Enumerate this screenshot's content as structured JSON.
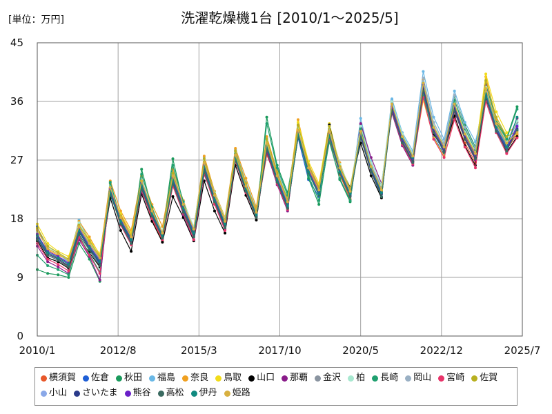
{
  "unit_label": "[単位：万円]",
  "chart_data": {
    "type": "line",
    "title": "洗濯乾燥機1台 [2010/1～2025/5]",
    "xlabel": "",
    "ylabel": "",
    "ylim": [
      0,
      45
    ],
    "y_ticks": [
      0,
      9,
      18,
      27,
      36,
      45
    ],
    "x_ticks": [
      "2010/1",
      "2012/8",
      "2015/3",
      "2017/10",
      "2020/5",
      "2022/12",
      "2025/7"
    ],
    "x_range": [
      "2010/1",
      "2025/7"
    ],
    "grid": true,
    "legend_position": "bottom",
    "x": [
      "2010/1",
      "2010/5",
      "2010/9",
      "2011/1",
      "2011/5",
      "2011/9",
      "2012/1",
      "2012/5",
      "2012/9",
      "2013/1",
      "2013/5",
      "2013/9",
      "2014/1",
      "2014/5",
      "2014/9",
      "2015/1",
      "2015/5",
      "2015/9",
      "2016/1",
      "2016/5",
      "2016/9",
      "2017/1",
      "2017/5",
      "2017/9",
      "2018/1",
      "2018/5",
      "2018/9",
      "2019/1",
      "2019/5",
      "2019/9",
      "2020/1",
      "2020/5",
      "2020/9",
      "2021/1",
      "2021/5",
      "2021/9",
      "2022/1",
      "2022/5",
      "2022/9",
      "2023/1",
      "2023/5",
      "2023/9",
      "2024/1",
      "2024/5",
      "2024/9",
      "2025/1",
      "2025/5"
    ],
    "series": [
      {
        "name": "横須賀",
        "color": "#e8582a",
        "values": [
          15.8,
          12.6,
          11.9,
          10.6,
          15.6,
          13.2,
          11.5,
          22.1,
          18.6,
          15.4,
          22.8,
          17.8,
          14.6,
          23.2,
          19.4,
          15.2,
          25.4,
          20.4,
          16.6,
          27.2,
          22.6,
          18.6,
          27.8,
          23.8,
          19.4,
          32.2,
          25.2,
          22.2,
          30.6,
          24.8,
          21.0,
          31.2,
          25.6,
          22.6,
          35.2,
          29.6,
          26.6,
          38.8,
          31.2,
          28.2,
          33.6,
          29.6,
          26.6,
          37.2,
          31.6,
          28.6,
          31.0
        ]
      },
      {
        "name": "佐倉",
        "color": "#1f5fd6",
        "values": [
          16.8,
          13.0,
          12.2,
          11.0,
          16.4,
          13.6,
          11.0,
          21.6,
          17.6,
          14.8,
          23.6,
          18.8,
          15.2,
          24.0,
          19.6,
          15.6,
          26.2,
          20.8,
          17.2,
          27.6,
          23.2,
          19.2,
          29.2,
          24.6,
          20.4,
          30.4,
          24.0,
          21.4,
          31.8,
          25.6,
          21.8,
          30.8,
          25.2,
          21.4,
          36.2,
          30.2,
          27.2,
          37.4,
          30.6,
          27.8,
          35.2,
          30.8,
          27.4,
          36.6,
          32.0,
          29.2,
          31.6
        ]
      },
      {
        "name": "秋田",
        "color": "#1a9a5c",
        "values": [
          10.2,
          9.6,
          9.4,
          9.0,
          14.2,
          11.8,
          8.4,
          23.4,
          17.8,
          14.2,
          25.6,
          19.6,
          15.8,
          27.2,
          20.2,
          15.2,
          26.8,
          21.6,
          17.6,
          28.4,
          23.2,
          18.2,
          33.6,
          26.2,
          22.0,
          31.8,
          24.2,
          20.2,
          30.2,
          24.0,
          20.6,
          32.4,
          26.4,
          21.8,
          35.8,
          30.6,
          27.6,
          37.6,
          31.8,
          29.2,
          36.8,
          32.4,
          29.0,
          38.6,
          33.2,
          30.4,
          35.2
        ]
      },
      {
        "name": "福島",
        "color": "#6ab8e6",
        "values": [
          16.2,
          13.4,
          12.6,
          11.4,
          17.8,
          14.6,
          12.2,
          22.8,
          18.2,
          15.6,
          24.2,
          19.2,
          15.8,
          25.2,
          20.4,
          16.2,
          27.4,
          21.6,
          17.8,
          28.6,
          23.6,
          19.4,
          30.4,
          25.4,
          21.2,
          31.6,
          25.8,
          22.6,
          31.2,
          25.2,
          21.6,
          33.4,
          26.8,
          23.0,
          36.4,
          31.2,
          28.4,
          40.6,
          33.6,
          30.2,
          37.6,
          32.8,
          29.8,
          36.8,
          31.6,
          28.8,
          32.4
        ]
      },
      {
        "name": "奈良",
        "color": "#f0a020",
        "values": [
          16.4,
          13.2,
          12.4,
          11.8,
          17.6,
          15.2,
          12.4,
          23.8,
          19.2,
          16.2,
          24.6,
          20.2,
          16.8,
          25.6,
          20.8,
          16.6,
          27.6,
          22.2,
          18.2,
          28.8,
          24.2,
          19.8,
          30.6,
          25.2,
          21.0,
          33.2,
          26.4,
          23.0,
          31.8,
          26.6,
          22.4,
          30.6,
          25.6,
          22.2,
          35.6,
          30.4,
          27.2,
          39.4,
          32.2,
          29.0,
          34.6,
          30.6,
          27.8,
          39.8,
          33.2,
          30.0,
          30.8
        ]
      },
      {
        "name": "鳥取",
        "color": "#f2dc1a",
        "values": [
          17.2,
          14.2,
          13.0,
          12.2,
          17.2,
          14.8,
          12.6,
          22.4,
          18.8,
          15.8,
          23.4,
          19.4,
          15.6,
          24.6,
          20.0,
          16.4,
          26.6,
          21.2,
          17.4,
          27.4,
          22.8,
          19.0,
          29.8,
          24.8,
          20.8,
          32.8,
          26.8,
          23.4,
          32.6,
          26.2,
          22.8,
          31.6,
          26.0,
          22.4,
          34.8,
          29.6,
          26.8,
          36.2,
          30.4,
          27.6,
          35.6,
          31.2,
          28.2,
          40.2,
          34.4,
          31.2,
          32.2
        ]
      },
      {
        "name": "山口",
        "color": "#000000",
        "values": [
          14.6,
          12.0,
          11.4,
          10.4,
          15.0,
          12.8,
          10.6,
          21.2,
          16.2,
          13.0,
          21.8,
          17.6,
          14.4,
          21.4,
          18.2,
          14.6,
          23.8,
          19.2,
          15.8,
          26.2,
          21.6,
          17.8,
          28.8,
          23.6,
          19.6,
          30.6,
          25.4,
          22.2,
          32.4,
          26.0,
          22.8,
          29.6,
          24.6,
          21.2,
          35.4,
          30.0,
          26.8,
          38.2,
          31.0,
          28.4,
          33.8,
          29.2,
          26.2,
          36.4,
          31.8,
          28.2,
          30.6
        ]
      },
      {
        "name": "那覇",
        "color": "#8a1c8a",
        "values": [
          13.8,
          11.4,
          10.6,
          9.6,
          14.8,
          12.2,
          8.6,
          22.6,
          17.4,
          14.4,
          22.2,
          18.2,
          15.0,
          23.6,
          18.6,
          14.8,
          24.8,
          20.6,
          16.4,
          27.8,
          22.4,
          18.4,
          28.2,
          23.2,
          19.2,
          31.2,
          25.8,
          22.6,
          30.8,
          25.4,
          22.0,
          32.6,
          27.4,
          23.4,
          34.2,
          29.2,
          26.2,
          37.8,
          31.4,
          28.6,
          34.4,
          30.2,
          27.0,
          38.4,
          32.6,
          29.6,
          33.4
        ]
      },
      {
        "name": "金沢",
        "color": "#8a94a0",
        "values": [
          15.4,
          12.8,
          12.0,
          11.2,
          16.6,
          14.0,
          11.8,
          21.8,
          17.2,
          14.6,
          23.0,
          18.6,
          15.4,
          24.4,
          19.8,
          16.0,
          26.0,
          21.0,
          17.0,
          27.0,
          22.2,
          18.8,
          29.4,
          24.4,
          20.6,
          31.4,
          25.6,
          22.4,
          31.4,
          25.8,
          22.2,
          31.8,
          26.2,
          22.8,
          35.8,
          30.8,
          27.8,
          38.0,
          31.6,
          28.6,
          35.0,
          30.4,
          27.6,
          37.8,
          32.4,
          29.4,
          32.8
        ]
      },
      {
        "name": "柏",
        "color": "#a8e8d0",
        "values": [
          16.0,
          13.6,
          12.8,
          11.6,
          17.4,
          14.4,
          12.0,
          23.0,
          18.4,
          15.2,
          24.0,
          19.6,
          16.0,
          25.0,
          20.6,
          16.8,
          27.0,
          22.0,
          18.0,
          28.2,
          23.4,
          19.2,
          30.0,
          25.0,
          21.4,
          32.0,
          26.2,
          22.8,
          32.0,
          26.4,
          22.6,
          32.2,
          26.6,
          23.2,
          36.0,
          31.0,
          28.0,
          39.0,
          32.4,
          29.4,
          36.2,
          31.4,
          28.4,
          38.2,
          32.8,
          29.8,
          33.0
        ]
      },
      {
        "name": "長崎",
        "color": "#20a070",
        "values": [
          12.4,
          10.8,
          10.2,
          9.4,
          15.4,
          12.6,
          9.8,
          23.6,
          18.0,
          14.8,
          24.8,
          19.8,
          15.6,
          26.2,
          20.6,
          15.8,
          25.8,
          20.8,
          16.8,
          28.0,
          22.8,
          18.6,
          32.6,
          25.8,
          21.6,
          31.0,
          24.6,
          20.8,
          29.8,
          24.2,
          20.8,
          31.8,
          25.8,
          21.4,
          35.0,
          30.2,
          27.4,
          36.8,
          31.2,
          28.8,
          36.2,
          31.8,
          28.6,
          37.6,
          32.8,
          30.2,
          34.8
        ]
      },
      {
        "name": "岡山",
        "color": "#9ab0c4",
        "values": [
          15.6,
          13.0,
          12.2,
          11.4,
          16.8,
          14.2,
          11.6,
          22.2,
          17.8,
          15.0,
          23.2,
          18.8,
          15.4,
          24.8,
          20.2,
          16.4,
          26.4,
          21.4,
          17.6,
          27.6,
          22.6,
          18.8,
          29.6,
          24.6,
          20.8,
          31.0,
          25.0,
          21.8,
          31.6,
          25.8,
          22.0,
          31.4,
          25.8,
          22.4,
          35.4,
          30.4,
          27.6,
          39.6,
          32.8,
          29.6,
          37.0,
          32.0,
          28.8,
          37.4,
          32.2,
          29.0,
          32.0
        ]
      },
      {
        "name": "宮崎",
        "color": "#e8346a",
        "values": [
          14.2,
          11.8,
          11.0,
          10.0,
          15.2,
          12.4,
          9.6,
          22.0,
          17.0,
          14.0,
          22.4,
          18.0,
          14.8,
          23.0,
          18.8,
          14.8,
          25.0,
          20.2,
          16.2,
          26.8,
          22.0,
          18.2,
          28.6,
          23.4,
          19.4,
          31.0,
          25.6,
          22.0,
          30.4,
          25.0,
          21.4,
          31.4,
          25.4,
          21.8,
          34.6,
          29.4,
          26.4,
          36.6,
          30.2,
          27.4,
          33.2,
          29.0,
          25.8,
          36.0,
          31.2,
          28.0,
          30.4
        ]
      },
      {
        "name": "佐賀",
        "color": "#b8b020",
        "values": [
          16.6,
          13.8,
          12.8,
          11.8,
          17.0,
          14.6,
          12.2,
          22.6,
          18.4,
          15.4,
          23.8,
          19.4,
          15.8,
          25.0,
          20.2,
          16.2,
          27.2,
          21.8,
          17.8,
          28.4,
          23.4,
          19.2,
          30.2,
          25.0,
          21.0,
          32.4,
          26.2,
          22.8,
          32.2,
          26.0,
          22.6,
          31.2,
          25.8,
          22.2,
          35.0,
          30.0,
          27.0,
          38.4,
          31.8,
          28.8,
          34.8,
          30.8,
          27.6,
          39.2,
          33.6,
          30.6,
          31.4
        ]
      },
      {
        "name": "小山",
        "color": "#8aa8e8",
        "values": [
          15.2,
          12.8,
          12.0,
          11.0,
          16.2,
          13.8,
          11.4,
          22.4,
          17.8,
          14.8,
          23.4,
          19.0,
          15.6,
          24.2,
          19.8,
          16.0,
          26.2,
          21.2,
          17.4,
          27.4,
          22.8,
          18.8,
          29.0,
          24.2,
          20.2,
          31.2,
          25.4,
          22.0,
          31.0,
          25.4,
          21.8,
          31.0,
          25.6,
          22.0,
          35.2,
          30.2,
          27.2,
          38.6,
          31.8,
          28.8,
          35.4,
          30.8,
          27.8,
          37.0,
          31.8,
          28.8,
          32.2
        ]
      },
      {
        "name": "さいたま",
        "color": "#2a3a8a",
        "values": [
          15.0,
          12.6,
          11.8,
          10.8,
          16.0,
          13.4,
          11.2,
          22.2,
          17.4,
          14.6,
          23.0,
          18.6,
          15.4,
          23.8,
          19.4,
          15.6,
          25.8,
          20.8,
          17.0,
          27.2,
          22.4,
          18.4,
          28.8,
          23.8,
          19.8,
          30.8,
          25.2,
          21.8,
          30.8,
          25.2,
          21.6,
          30.8,
          25.4,
          21.8,
          34.8,
          29.8,
          26.8,
          38.0,
          31.4,
          28.4,
          35.0,
          30.4,
          27.4,
          36.8,
          31.6,
          28.6,
          31.8
        ]
      },
      {
        "name": "熊谷",
        "color": "#6a20c8",
        "values": [
          15.6,
          13.0,
          12.2,
          11.2,
          16.4,
          13.8,
          11.6,
          22.6,
          17.8,
          15.0,
          23.4,
          19.0,
          15.6,
          24.2,
          19.8,
          16.0,
          26.2,
          21.2,
          17.4,
          27.4,
          22.8,
          18.8,
          29.0,
          24.2,
          20.2,
          31.2,
          25.4,
          22.0,
          31.0,
          25.4,
          21.8,
          31.0,
          25.6,
          22.0,
          35.2,
          30.2,
          27.2,
          38.6,
          31.8,
          28.8,
          35.4,
          30.8,
          27.8,
          37.0,
          31.8,
          28.8,
          32.2
        ]
      },
      {
        "name": "高松",
        "color": "#3a6a60",
        "values": [
          14.8,
          12.4,
          11.6,
          10.6,
          15.6,
          13.2,
          10.8,
          21.8,
          17.2,
          14.2,
          22.6,
          18.4,
          15.0,
          23.4,
          19.0,
          15.2,
          25.2,
          20.6,
          16.6,
          27.0,
          22.2,
          18.2,
          28.6,
          23.6,
          19.6,
          30.6,
          25.0,
          21.6,
          30.6,
          25.0,
          21.4,
          30.4,
          25.2,
          21.4,
          34.6,
          29.6,
          26.6,
          37.6,
          31.2,
          28.2,
          34.6,
          30.2,
          27.2,
          36.6,
          31.4,
          28.4,
          31.6
        ]
      },
      {
        "name": "伊丹",
        "color": "#108a80",
        "values": [
          15.4,
          12.8,
          12.0,
          11.0,
          16.2,
          13.6,
          11.4,
          22.2,
          17.6,
          14.8,
          23.2,
          18.8,
          15.4,
          24.0,
          19.6,
          15.8,
          26.0,
          21.0,
          17.2,
          27.4,
          22.6,
          18.6,
          29.2,
          24.0,
          20.0,
          31.0,
          25.2,
          21.8,
          30.8,
          25.2,
          21.8,
          31.2,
          25.8,
          22.0,
          35.6,
          30.4,
          27.4,
          38.8,
          32.0,
          29.0,
          35.6,
          31.0,
          28.0,
          37.2,
          32.0,
          29.0,
          33.6
        ]
      },
      {
        "name": "姫路",
        "color": "#d8b040",
        "values": [
          16.2,
          13.4,
          12.6,
          11.6,
          16.8,
          14.2,
          12.0,
          22.8,
          18.2,
          15.2,
          23.8,
          19.2,
          15.8,
          24.6,
          20.2,
          16.4,
          26.6,
          21.6,
          17.6,
          27.8,
          23.0,
          19.0,
          29.6,
          24.6,
          20.6,
          31.6,
          25.8,
          22.4,
          31.4,
          25.8,
          22.2,
          31.4,
          26.0,
          22.4,
          35.6,
          30.6,
          27.6,
          38.8,
          32.0,
          29.0,
          35.6,
          31.0,
          28.0,
          38.0,
          32.6,
          29.6,
          31.2
        ]
      }
    ]
  }
}
